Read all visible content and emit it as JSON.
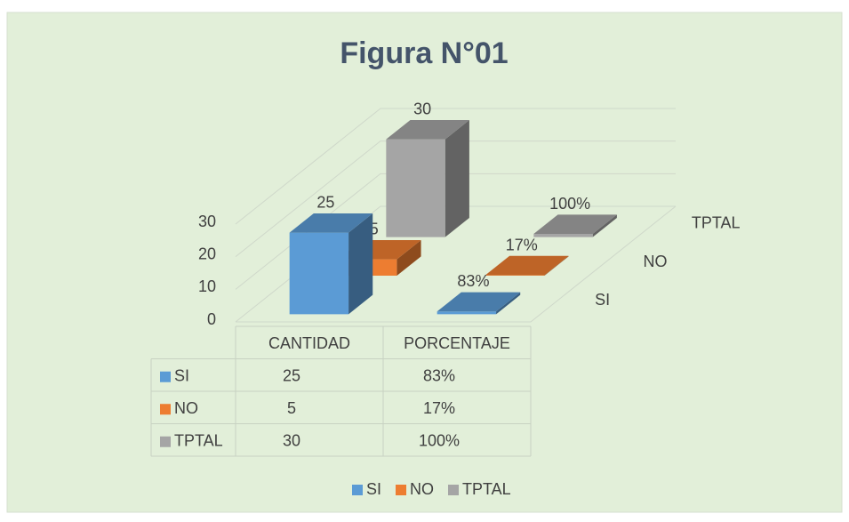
{
  "chart_data": {
    "type": "bar3d",
    "title": "Figura N°01",
    "categories": [
      "CANTIDAD",
      "PORCENTAJE"
    ],
    "series": [
      {
        "name": "SI",
        "color": "#5b9bd5",
        "values": [
          25,
          0.83
        ],
        "value_labels": [
          "25",
          "83%"
        ]
      },
      {
        "name": "NO",
        "color": "#ed7d31",
        "values": [
          5,
          0.17
        ],
        "value_labels": [
          "5",
          "17%"
        ]
      },
      {
        "name": "TPTAL",
        "color": "#a5a5a5",
        "values": [
          30,
          1.0
        ],
        "value_labels": [
          "30",
          "100%"
        ]
      }
    ],
    "ylim": [
      0,
      30
    ],
    "yticks": [
      0,
      10,
      20,
      30
    ],
    "grid": true,
    "legend": "bottom",
    "data_table": true
  }
}
